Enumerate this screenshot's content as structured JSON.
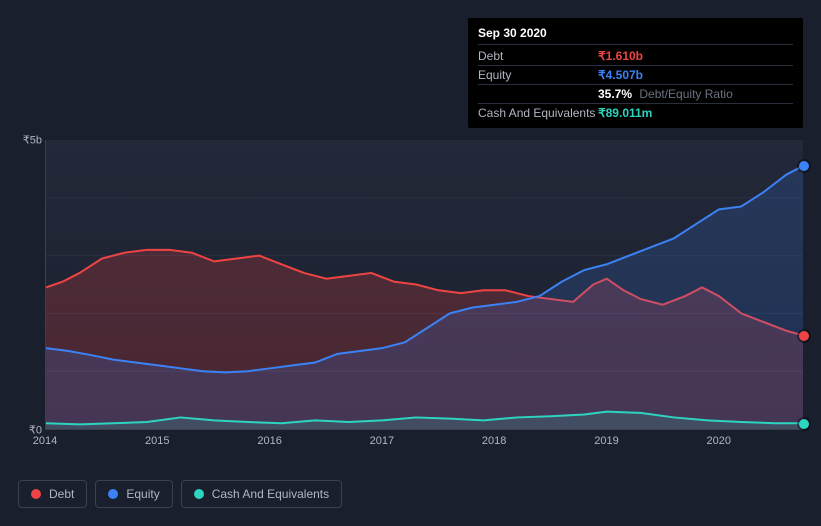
{
  "tooltip": {
    "date": "Sep 30 2020",
    "rows": [
      {
        "label": "Debt",
        "value": "₹1.610b",
        "color": "#ef4444"
      },
      {
        "label": "Equity",
        "value": "₹4.507b",
        "color": "#3b82f6"
      },
      {
        "label": "",
        "value": "35.7%",
        "suffix": "Debt/Equity Ratio",
        "color": "#ffffff"
      },
      {
        "label": "Cash And Equivalents",
        "value": "₹89.011m",
        "color": "#2dd4bf"
      }
    ]
  },
  "chart": {
    "type": "area",
    "background_color": "#1a1f2e",
    "plot_bg_gradient": [
      "#232938",
      "#1a1f2e"
    ],
    "grid_color": "#2a3040",
    "axis_color": "#3a4050",
    "text_color": "#b0b6c2",
    "font_size_axis": 11,
    "font_size_legend": 12,
    "ylim": [
      0,
      5
    ],
    "y_ticks": [
      0,
      5
    ],
    "y_tick_labels": [
      "₹0",
      "₹5b"
    ],
    "x_ticks": [
      2014,
      2015,
      2016,
      2017,
      2018,
      2019,
      2020
    ],
    "x_range": [
      2014,
      2020.75
    ],
    "gridlines_y_minor": [
      1,
      2,
      3,
      4
    ],
    "series": [
      {
        "name": "Debt",
        "color": "#ef4444",
        "fill_opacity": 0.22,
        "line_width": 2,
        "data": [
          [
            2014.0,
            2.45
          ],
          [
            2014.15,
            2.55
          ],
          [
            2014.3,
            2.7
          ],
          [
            2014.5,
            2.95
          ],
          [
            2014.7,
            3.05
          ],
          [
            2014.9,
            3.1
          ],
          [
            2015.1,
            3.1
          ],
          [
            2015.3,
            3.05
          ],
          [
            2015.5,
            2.9
          ],
          [
            2015.7,
            2.95
          ],
          [
            2015.9,
            3.0
          ],
          [
            2016.1,
            2.85
          ],
          [
            2016.3,
            2.7
          ],
          [
            2016.5,
            2.6
          ],
          [
            2016.7,
            2.65
          ],
          [
            2016.9,
            2.7
          ],
          [
            2017.1,
            2.55
          ],
          [
            2017.3,
            2.5
          ],
          [
            2017.5,
            2.4
          ],
          [
            2017.7,
            2.35
          ],
          [
            2017.9,
            2.4
          ],
          [
            2018.1,
            2.4
          ],
          [
            2018.3,
            2.3
          ],
          [
            2018.5,
            2.25
          ],
          [
            2018.7,
            2.2
          ],
          [
            2018.88,
            2.5
          ],
          [
            2019.0,
            2.6
          ],
          [
            2019.15,
            2.4
          ],
          [
            2019.3,
            2.25
          ],
          [
            2019.5,
            2.15
          ],
          [
            2019.7,
            2.3
          ],
          [
            2019.85,
            2.45
          ],
          [
            2020.0,
            2.3
          ],
          [
            2020.2,
            2.0
          ],
          [
            2020.4,
            1.85
          ],
          [
            2020.6,
            1.7
          ],
          [
            2020.75,
            1.62
          ]
        ]
      },
      {
        "name": "Equity",
        "color": "#3b82f6",
        "fill_opacity": 0.18,
        "line_width": 2,
        "data": [
          [
            2014.0,
            1.4
          ],
          [
            2014.2,
            1.35
          ],
          [
            2014.4,
            1.28
          ],
          [
            2014.6,
            1.2
          ],
          [
            2014.8,
            1.15
          ],
          [
            2015.0,
            1.1
          ],
          [
            2015.2,
            1.05
          ],
          [
            2015.4,
            1.0
          ],
          [
            2015.6,
            0.98
          ],
          [
            2015.8,
            1.0
          ],
          [
            2016.0,
            1.05
          ],
          [
            2016.2,
            1.1
          ],
          [
            2016.4,
            1.15
          ],
          [
            2016.6,
            1.3
          ],
          [
            2016.8,
            1.35
          ],
          [
            2017.0,
            1.4
          ],
          [
            2017.2,
            1.5
          ],
          [
            2017.4,
            1.75
          ],
          [
            2017.6,
            2.0
          ],
          [
            2017.8,
            2.1
          ],
          [
            2018.0,
            2.15
          ],
          [
            2018.2,
            2.2
          ],
          [
            2018.4,
            2.3
          ],
          [
            2018.6,
            2.55
          ],
          [
            2018.8,
            2.75
          ],
          [
            2019.0,
            2.85
          ],
          [
            2019.2,
            3.0
          ],
          [
            2019.4,
            3.15
          ],
          [
            2019.6,
            3.3
          ],
          [
            2019.8,
            3.55
          ],
          [
            2020.0,
            3.8
          ],
          [
            2020.2,
            3.85
          ],
          [
            2020.4,
            4.1
          ],
          [
            2020.6,
            4.4
          ],
          [
            2020.75,
            4.55
          ]
        ]
      },
      {
        "name": "Cash And Equivalents",
        "color": "#2dd4bf",
        "fill_opacity": 0.15,
        "line_width": 2,
        "data": [
          [
            2014.0,
            0.1
          ],
          [
            2014.3,
            0.08
          ],
          [
            2014.6,
            0.1
          ],
          [
            2014.9,
            0.12
          ],
          [
            2015.2,
            0.2
          ],
          [
            2015.5,
            0.15
          ],
          [
            2015.8,
            0.12
          ],
          [
            2016.1,
            0.1
          ],
          [
            2016.4,
            0.15
          ],
          [
            2016.7,
            0.12
          ],
          [
            2017.0,
            0.15
          ],
          [
            2017.3,
            0.2
          ],
          [
            2017.6,
            0.18
          ],
          [
            2017.9,
            0.15
          ],
          [
            2018.2,
            0.2
          ],
          [
            2018.5,
            0.22
          ],
          [
            2018.8,
            0.25
          ],
          [
            2019.0,
            0.3
          ],
          [
            2019.3,
            0.28
          ],
          [
            2019.6,
            0.2
          ],
          [
            2019.9,
            0.15
          ],
          [
            2020.2,
            0.12
          ],
          [
            2020.5,
            0.1
          ],
          [
            2020.75,
            0.1
          ]
        ]
      }
    ],
    "end_markers": [
      {
        "series": "Equity",
        "color": "#3b82f6",
        "x": 2020.75,
        "y": 4.55
      },
      {
        "series": "Debt",
        "color": "#ef4444",
        "x": 2020.75,
        "y": 1.62
      },
      {
        "series": "Cash And Equivalents",
        "color": "#2dd4bf",
        "x": 2020.75,
        "y": 0.1
      }
    ]
  },
  "legend": {
    "items": [
      {
        "label": "Debt",
        "color": "#ef4444"
      },
      {
        "label": "Equity",
        "color": "#3b82f6"
      },
      {
        "label": "Cash And Equivalents",
        "color": "#2dd4bf"
      }
    ]
  }
}
